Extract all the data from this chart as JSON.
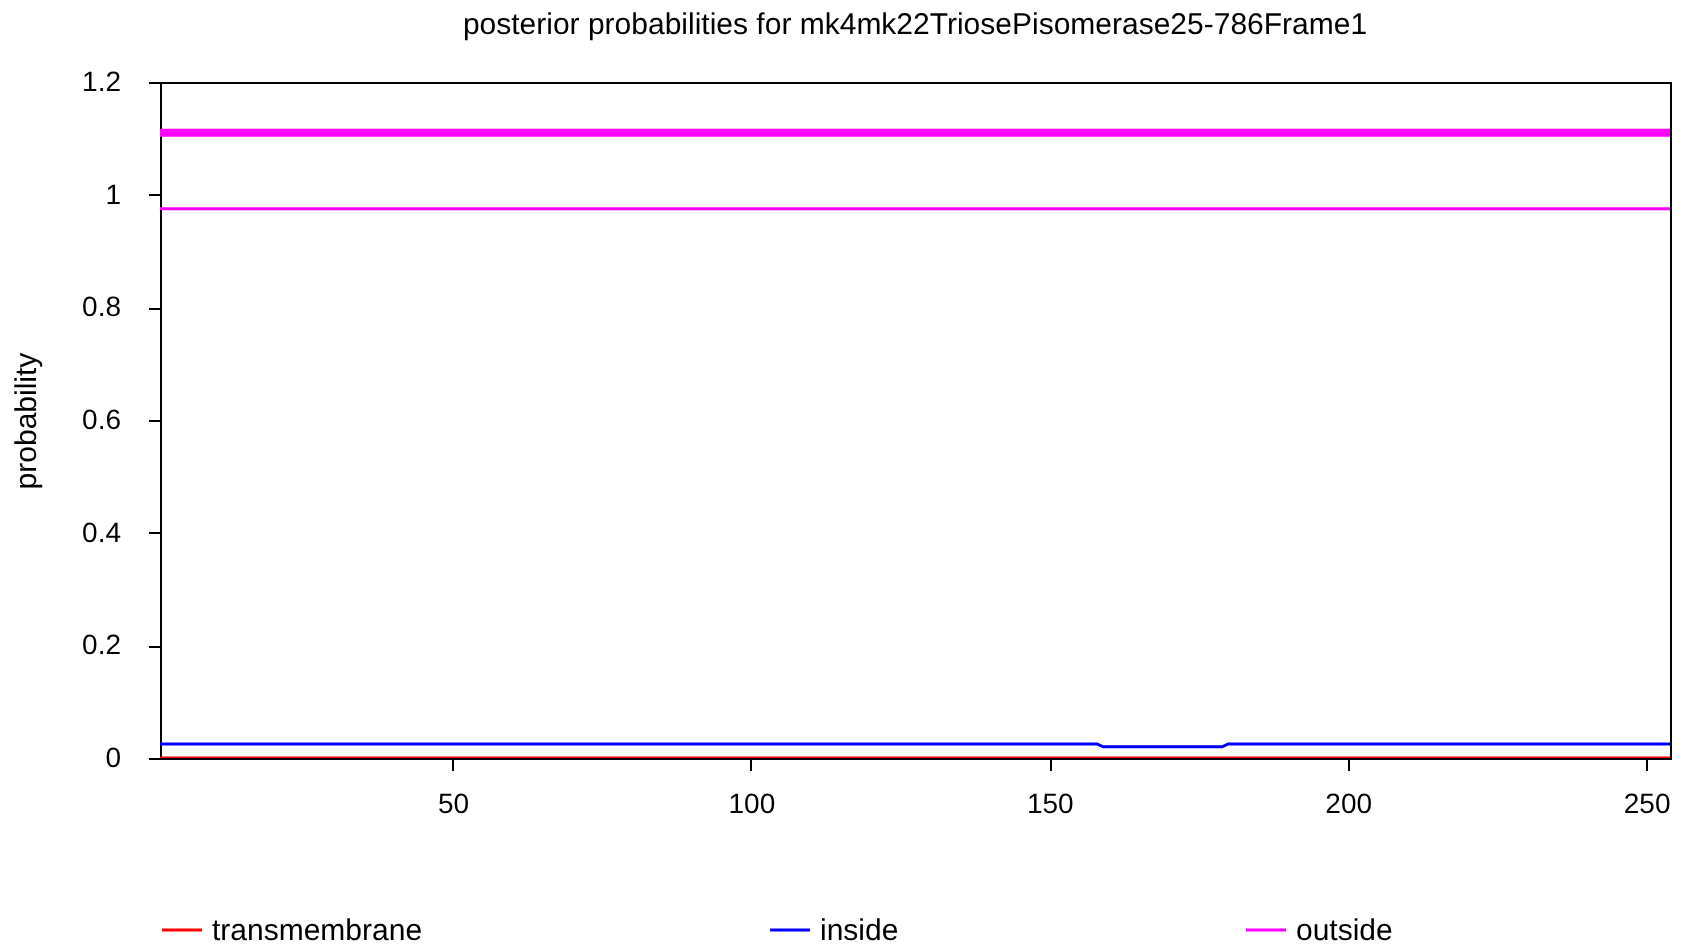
{
  "chart_data": {
    "type": "line",
    "title": "posterior probabilities for mk4mk22TriosePisomerase25-786Frame1",
    "ylabel": "probability",
    "xlim": [
      1,
      254
    ],
    "xticks": [
      50,
      100,
      150,
      200,
      250
    ],
    "ylim": [
      0,
      1.2
    ],
    "yticks": [
      0,
      0.2,
      0.4,
      0.6,
      0.8,
      1,
      1.2
    ],
    "grid": false,
    "legend": "bottom",
    "marker": "none",
    "line_style": "solid",
    "series": [
      {
        "name": "transmembrane",
        "color": "#ff0000",
        "x": [
          1,
          254
        ],
        "values": [
          0,
          0
        ]
      },
      {
        "name": "inside",
        "color": "#0000ff",
        "x": [
          1,
          158,
          159,
          179,
          180,
          254
        ],
        "values": [
          0.025,
          0.025,
          0.02,
          0.02,
          0.025,
          0.025
        ]
      },
      {
        "name": "outside",
        "color": "#ff00ff",
        "x": [
          1,
          254
        ],
        "values": [
          0.975,
          0.975
        ]
      }
    ],
    "ref_lines": [
      {
        "axis": "y",
        "value": 1.11,
        "color": "#ff00ff"
      }
    ]
  }
}
